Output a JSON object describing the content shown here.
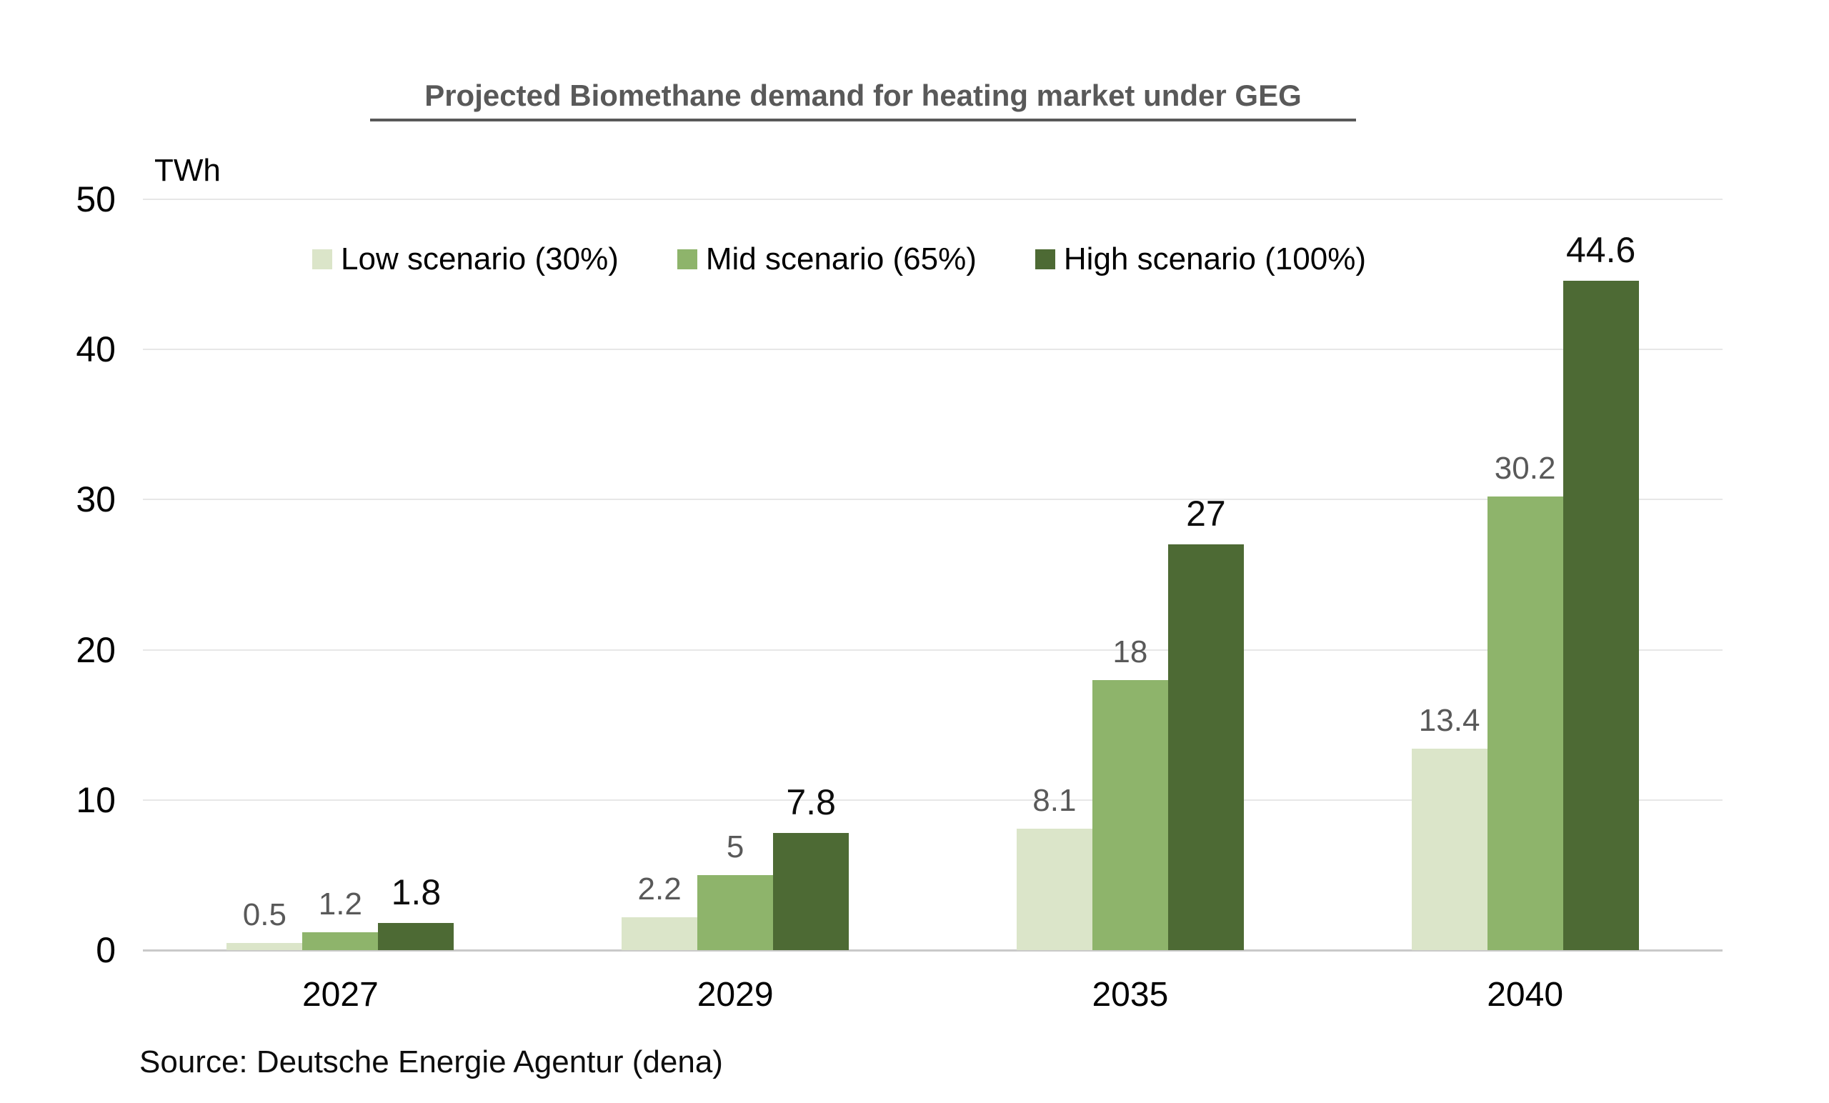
{
  "title": "Projected Biomethane demand for heating market under GEG",
  "unit_label": "TWh",
  "source_note": "Source: Deutsche Energie Agentur (dena)",
  "colors": {
    "low": "#dbe5c9",
    "mid": "#8eb46b",
    "high": "#4d6a34",
    "gridline": "#e7e7e7",
    "axis_line": "#c9c9c9",
    "gray_label": "#595959",
    "black_label": "#0d0d0d",
    "title_text": "#595959"
  },
  "chart_data": {
    "type": "bar",
    "title": "Projected Biomethane demand for heating market under GEG",
    "xlabel": "",
    "ylabel": "TWh",
    "ylim": [
      0,
      50
    ],
    "yticks": [
      0,
      10,
      20,
      30,
      40,
      50
    ],
    "grid": true,
    "legend_position": "top",
    "categories": [
      "2027",
      "2029",
      "2035",
      "2040"
    ],
    "series": [
      {
        "name": "Low scenario (30%)",
        "color": "#dbe5c9",
        "label_style": "gray",
        "values": [
          0.5,
          2.2,
          8.1,
          13.4
        ]
      },
      {
        "name": "Mid scenario (65%)",
        "color": "#8eb46b",
        "label_style": "gray",
        "values": [
          1.2,
          5,
          18,
          30.2
        ]
      },
      {
        "name": "High scenario (100%)",
        "color": "#4d6a34",
        "label_style": "black",
        "values": [
          1.8,
          7.8,
          27,
          44.6
        ]
      }
    ]
  }
}
